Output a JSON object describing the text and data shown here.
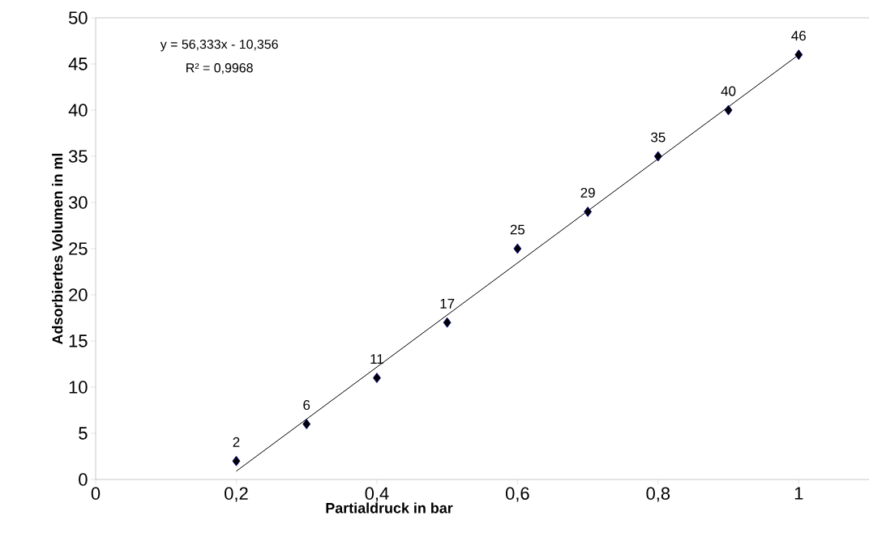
{
  "chart_data": {
    "type": "scatter",
    "xlabel": "Partialdruck in bar",
    "ylabel": "Adsorbiertes Volumen in ml",
    "annotations": [
      "y = 56,333x - 10,356",
      "R² = 0,9968"
    ],
    "series": [
      {
        "color": "#000000",
        "marker": "diamond",
        "x": [
          0.2,
          0.3,
          0.4,
          0.5,
          0.6,
          0.7,
          0.8,
          0.9,
          1.0
        ],
        "values": [
          2,
          6,
          11,
          17,
          25,
          29,
          35,
          40,
          46
        ],
        "value_labels": [
          "2",
          "6",
          "11",
          "17",
          "25",
          "29",
          "35",
          "40",
          "46"
        ]
      },
      {
        "type": "line",
        "color": "#000000",
        "line_style": "solid",
        "x": [
          0.2,
          1.0
        ],
        "values": [
          0.9,
          46.0
        ]
      }
    ],
    "xlim": [
      0,
      1.1
    ],
    "ylim": [
      0,
      50
    ],
    "xticks": [
      0,
      {
        "value": 0.2,
        "label": "0,2"
      },
      {
        "value": 0.4,
        "label": "0,4"
      },
      {
        "value": 0.6,
        "label": "0,6"
      },
      {
        "value": 0.8,
        "label": "0,8"
      },
      1
    ],
    "yticks": [
      0,
      5,
      10,
      15,
      20,
      25,
      30,
      35,
      40,
      45,
      50
    ],
    "grid": false
  }
}
